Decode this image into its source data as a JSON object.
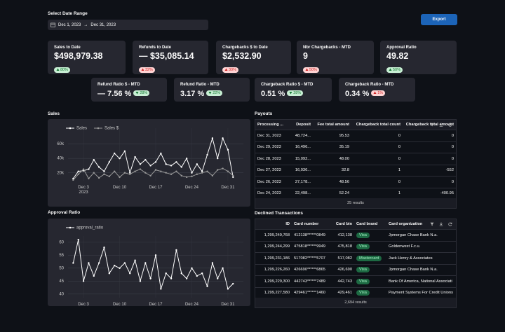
{
  "header": {
    "date_label": "Select Date Range",
    "date_range": {
      "start": "Dec 1, 2023",
      "separator": "→",
      "end": "Dec 31, 2023"
    },
    "export_button": "Export"
  },
  "kpis_row1": [
    {
      "label": "Sales to Date",
      "value": "$498,979.38",
      "delta": "80%",
      "delta_dir": "up",
      "delta_color": "green"
    },
    {
      "label": "Refunds to Date",
      "value": "— $35,085.14",
      "delta": "32%",
      "delta_dir": "up",
      "delta_color": "red"
    },
    {
      "label": "Chargebacks $ to Date",
      "value": "$2,532.90",
      "delta": "30%",
      "delta_dir": "up",
      "delta_color": "red"
    },
    {
      "label": "Nbr Chargebacks - MTD",
      "value": "9",
      "delta": "50%",
      "delta_dir": "up",
      "delta_color": "red"
    },
    {
      "label": "Approval Ratio",
      "value": "49.82",
      "delta": "50%",
      "delta_dir": "up",
      "delta_color": "green"
    }
  ],
  "kpis_row2": [
    {
      "label": "Refund Ratio $ - MTD",
      "value": "— 7.56 %",
      "delta": "28%",
      "delta_dir": "down",
      "delta_color": "green"
    },
    {
      "label": "Refund Ratio - MTD",
      "value": "3.17 %",
      "delta": "22%",
      "delta_dir": "down",
      "delta_color": "green"
    },
    {
      "label": "Chargeback Ratio $ - MTD",
      "value": "0.51 %",
      "delta": "28%",
      "delta_dir": "down",
      "delta_color": "green"
    },
    {
      "label": "Chargeback Ratio - MTD",
      "value": "0.34 %",
      "delta": "1%",
      "delta_dir": "up",
      "delta_color": "red"
    }
  ],
  "chart_data": [
    {
      "type": "line",
      "title": "Sales",
      "x": [
        "2023-12-01",
        "2023-12-02",
        "2023-12-03",
        "2023-12-04",
        "2023-12-05",
        "2023-12-06",
        "2023-12-07",
        "2023-12-08",
        "2023-12-09",
        "2023-12-10",
        "2023-12-11",
        "2023-12-12",
        "2023-12-13",
        "2023-12-14",
        "2023-12-15",
        "2023-12-16",
        "2023-12-17",
        "2023-12-18",
        "2023-12-19",
        "2023-12-20",
        "2023-12-21",
        "2023-12-22",
        "2023-12-23",
        "2023-12-24",
        "2023-12-25",
        "2023-12-26",
        "2023-12-27",
        "2023-12-28",
        "2023-12-29",
        "2023-12-30",
        "2023-12-31",
        "2024-01-01"
      ],
      "series": [
        {
          "name": "Sales",
          "color": "#ffffff",
          "values": [
            12000,
            22000,
            23000,
            25000,
            38000,
            28000,
            22000,
            35000,
            47000,
            40000,
            50000,
            20000,
            42000,
            32000,
            38000,
            30000,
            35000,
            47000,
            32000,
            30000,
            35000,
            28000,
            40000,
            20000,
            32000,
            22000,
            45000,
            68000,
            40000,
            68000,
            52000,
            14000
          ]
        },
        {
          "name": "Sales $",
          "color": "#9a9a9a",
          "values": [
            10000,
            18000,
            25000,
            12000,
            20000,
            13000,
            18000,
            15000,
            22000,
            14000,
            20000,
            18000,
            22000,
            25000,
            20000,
            16000,
            24000,
            22000,
            20000,
            18000,
            22000,
            16000,
            14000,
            15000,
            18000,
            20000,
            22000,
            16000,
            24000,
            26000,
            22000,
            16000
          ]
        }
      ],
      "xlim": [
        "2023-11-30",
        "2024-01-03"
      ],
      "xticks": [
        {
          "value": "2023-12-03",
          "label": "Dec 3\n2023"
        },
        {
          "value": "2023-12-10",
          "label": "Dec 10"
        },
        {
          "value": "2023-12-17",
          "label": "Dec 17"
        },
        {
          "value": "2023-12-24",
          "label": "Dec 24"
        },
        {
          "value": "2023-12-31",
          "label": "Dec 31"
        }
      ],
      "ylim": [
        9000,
        82000
      ],
      "yticks": [
        {
          "value": 20000,
          "label": "20k"
        },
        {
          "value": 40000,
          "label": "40k"
        },
        {
          "value": 60000,
          "label": "60k"
        }
      ],
      "grid": true
    },
    {
      "type": "line",
      "title": "Approval Ratio",
      "x": [
        "2023-12-01",
        "2023-12-02",
        "2023-12-03",
        "2023-12-04",
        "2023-12-05",
        "2023-12-06",
        "2023-12-07",
        "2023-12-08",
        "2023-12-09",
        "2023-12-10",
        "2023-12-11",
        "2023-12-12",
        "2023-12-13",
        "2023-12-14",
        "2023-12-15",
        "2023-12-16",
        "2023-12-17",
        "2023-12-18",
        "2023-12-19",
        "2023-12-20",
        "2023-12-21",
        "2023-12-22",
        "2023-12-23",
        "2023-12-24",
        "2023-12-25",
        "2023-12-26",
        "2023-12-27",
        "2023-12-28",
        "2023-12-29",
        "2023-12-30",
        "2023-12-31",
        "2024-01-01"
      ],
      "series": [
        {
          "name": "approval_ratio",
          "color": "#ffffff",
          "values": [
            52,
            61,
            45,
            52,
            47,
            52,
            58,
            48,
            51,
            50,
            52,
            48,
            53,
            45,
            52,
            46,
            55,
            42,
            48,
            46,
            57,
            48,
            46,
            50,
            47,
            48,
            43,
            52,
            46,
            50,
            42,
            44
          ]
        }
      ],
      "xlim": [
        "2023-11-30",
        "2024-01-03"
      ],
      "xticks": [
        {
          "value": "2023-12-03",
          "label": "Dec 3\n2023"
        },
        {
          "value": "2023-12-10",
          "label": "Dec 10"
        },
        {
          "value": "2023-12-17",
          "label": "Dec 17"
        },
        {
          "value": "2023-12-24",
          "label": "Dec 24"
        },
        {
          "value": "2023-12-31",
          "label": "Dec 31"
        }
      ],
      "ylim": [
        38.6,
        62.4
      ],
      "yticks": [
        40,
        45,
        50,
        55,
        60
      ],
      "grid": true
    }
  ],
  "payouts": {
    "title": "Payouts",
    "columns": [
      "Processing ...",
      "Deposit",
      "Fee total amount",
      "Chargeback total count",
      "Chargeback total amount"
    ],
    "rows": [
      [
        "Dec 31, 2023",
        "48,724...",
        "95.53",
        "0",
        "0"
      ],
      [
        "Dec 29, 2023",
        "16,496...",
        "35.19",
        "0",
        "0"
      ],
      [
        "Dec 28, 2023",
        "15,092...",
        "48.00",
        "0",
        "0"
      ],
      [
        "Dec 27, 2023",
        "16,036...",
        "32.8",
        "1",
        "-552"
      ],
      [
        "Dec 26, 2023",
        "27,178...",
        "48.56",
        "0",
        "0"
      ],
      [
        "Dec 24, 2023",
        "22,498...",
        "52.24",
        "1",
        "-400.95"
      ]
    ],
    "footer": "25 results"
  },
  "declined": {
    "title": "Declined Transactions",
    "columns": [
      "ID",
      "Card number",
      "Card bin",
      "Card brand",
      "Card organization"
    ],
    "rows": [
      [
        "1,299,249,768",
        "412138******0849",
        "412,138",
        "Visa",
        "Jpmorgan Chase Bank N.a."
      ],
      [
        "1,299,244,299",
        "475818******9949",
        "475,818",
        "Visa",
        "Goldenwest F.c.u."
      ],
      [
        "1,299,231,186",
        "517082******5707",
        "517,082",
        "Mastercard",
        "Jack Henry & Associates"
      ],
      [
        "1,299,226,260",
        "426690******6865",
        "426,690",
        "Visa",
        "Jpmorgan Chase Bank N.a."
      ],
      [
        "1,299,229,300",
        "442743******7489",
        "442,743",
        "Visa",
        "Bank Of America, National Associati"
      ],
      [
        "1,299,227,580",
        "429461******1460",
        "429,461",
        "Visa",
        "Payment Systems For Credit Unions"
      ]
    ],
    "footer": "2,694 results"
  }
}
